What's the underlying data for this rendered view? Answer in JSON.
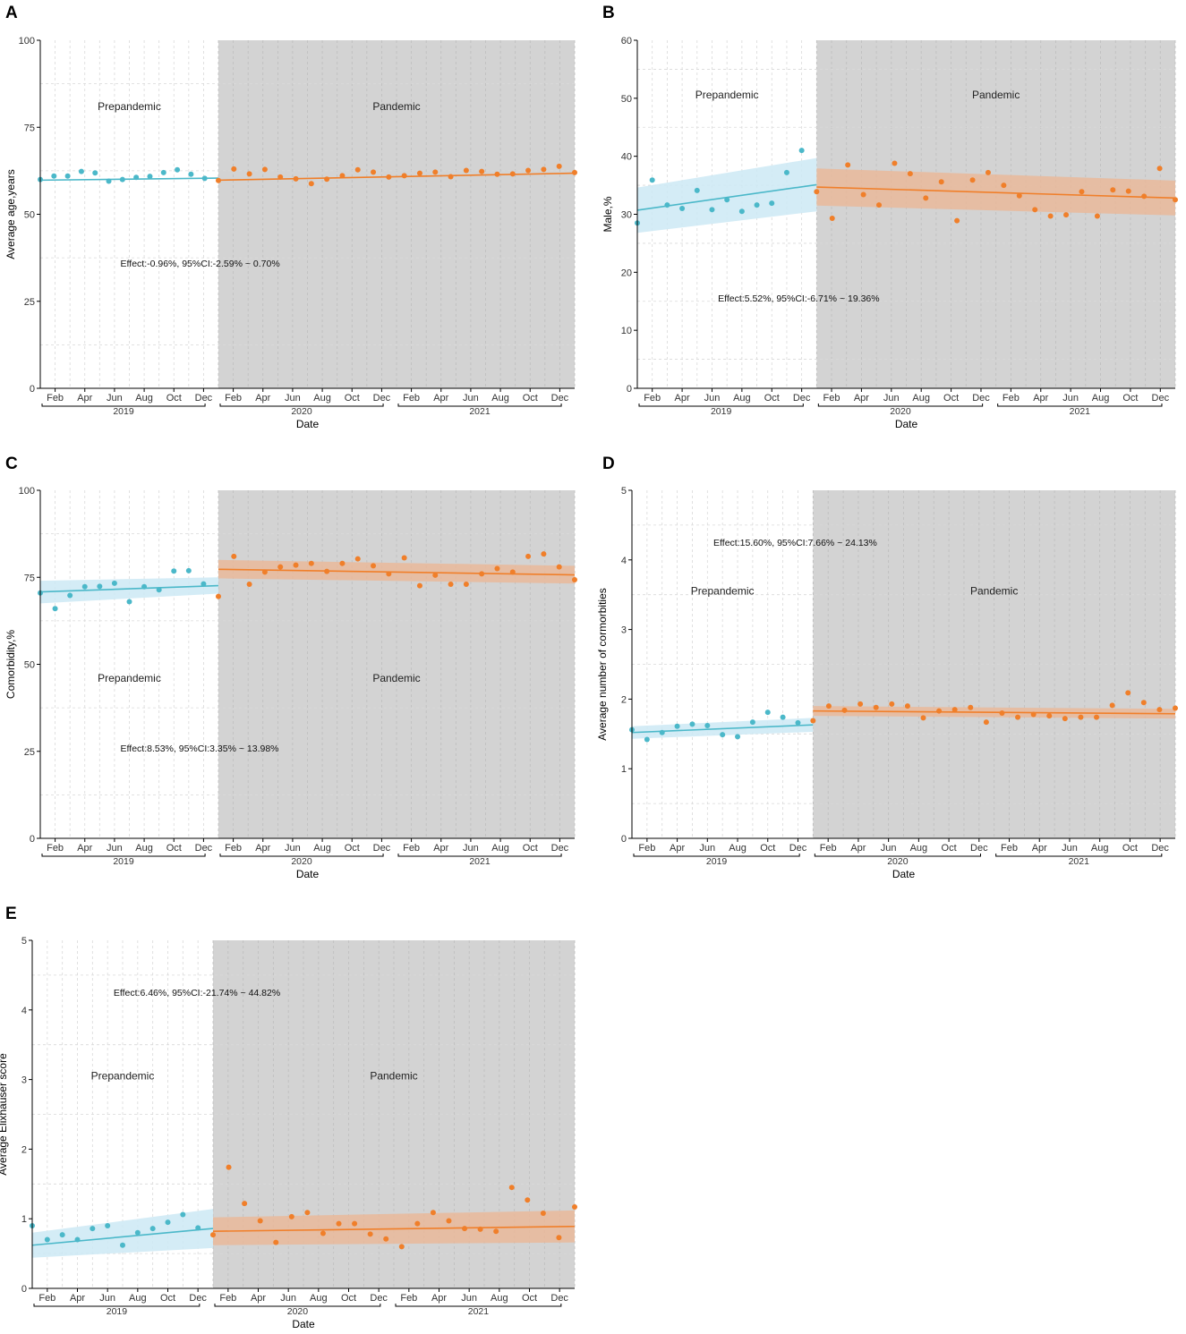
{
  "figure": {
    "months": [
      "Feb",
      "Apr",
      "Jun",
      "Aug",
      "Oct",
      "Dec"
    ],
    "years": [
      "2019",
      "2020",
      "2021"
    ],
    "xlabel": "Date",
    "region_labels": {
      "pre": "Prepandemic",
      "post": "Pandemic"
    },
    "colors": {
      "pre": "#4bb8c9",
      "post": "#f07f2a",
      "pre_band": "#cde9f5",
      "post_band": "#e9b89a",
      "pandemic_bg": "#d3d3d3"
    }
  },
  "chart_data": [
    {
      "panel": "A",
      "type": "scatter",
      "ylabel": "Average age,years",
      "xlabel": "Date",
      "ylim": [
        0,
        100
      ],
      "yticks": [
        0,
        25,
        50,
        75,
        100
      ],
      "pre_values": [
        60.0,
        61.0,
        61.0,
        62.3,
        61.9,
        59.5,
        60.0,
        60.6,
        60.9,
        62.0,
        62.8,
        61.5,
        60.3
      ],
      "post_values": [
        59.7,
        63.0,
        61.6,
        62.9,
        60.7,
        60.2,
        58.8,
        60.1,
        61.1,
        62.8,
        62.1,
        60.7,
        61.1,
        61.8,
        62.1,
        60.8,
        62.6,
        62.3,
        61.5,
        61.6,
        62.6,
        62.9,
        63.8,
        62.0
      ],
      "pre_fit": [
        59.8,
        60.4
      ],
      "post_fit": [
        59.8,
        61.8
      ],
      "pre_ci": null,
      "post_ci": null,
      "effect": "Effect:-0.96%, 95%CI:-2.59% ~ 0.70%",
      "labels": {
        "pre_y": 80,
        "post_y": 80,
        "effect_y": 35
      }
    },
    {
      "panel": "B",
      "type": "scatter",
      "ylabel": "Male,%",
      "xlabel": "Date",
      "ylim": [
        0,
        60
      ],
      "yticks": [
        0,
        10,
        20,
        30,
        40,
        50,
        60
      ],
      "pre_values": [
        28.5,
        35.9,
        31.6,
        31.0,
        34.1,
        30.8,
        32.5,
        30.5,
        31.6,
        31.9,
        37.2,
        41.0
      ],
      "post_values": [
        33.9,
        29.3,
        38.5,
        33.4,
        31.6,
        38.8,
        37.0,
        32.8,
        35.6,
        28.9,
        35.9,
        37.2,
        35.0,
        33.2,
        30.8,
        29.7,
        29.9,
        33.9,
        29.7,
        34.2,
        34.0,
        33.1,
        37.9,
        32.5
      ],
      "pre_fit": [
        30.7,
        35.1
      ],
      "post_fit": [
        34.7,
        32.8
      ],
      "pre_ci": [
        [
          26.8,
          34.6
        ],
        [
          30.5,
          39.7
        ]
      ],
      "post_ci": [
        [
          31.5,
          37.9
        ],
        [
          29.8,
          35.8
        ]
      ],
      "effect": "Effect:5.52%, 95%CI:-6.71% ~ 19.36%",
      "labels": {
        "pre_y": 50,
        "post_y": 50,
        "effect_y": 15
      }
    },
    {
      "panel": "C",
      "type": "scatter",
      "ylabel": "Comorbidity,%",
      "xlabel": "Date",
      "ylim": [
        0,
        100
      ],
      "yticks": [
        0,
        25,
        50,
        75,
        100
      ],
      "pre_values": [
        70.5,
        66.0,
        69.8,
        72.3,
        72.4,
        73.3,
        68.0,
        72.3,
        71.4,
        76.8,
        76.9,
        73.1
      ],
      "post_values": [
        69.5,
        81.0,
        73.0,
        76.5,
        78.0,
        78.5,
        79.0,
        76.7,
        79.0,
        80.3,
        78.3,
        76.0,
        80.6,
        72.6,
        75.6,
        73.0,
        73.0,
        76.0,
        77.5,
        76.5,
        81.0,
        81.7,
        78.0,
        74.3
      ],
      "pre_fit": [
        70.8,
        72.6
      ],
      "post_fit": [
        77.3,
        75.7
      ],
      "pre_ci": [
        [
          67.5,
          74.0
        ],
        [
          70.3,
          75.0
        ]
      ],
      "post_ci": [
        [
          74.7,
          80.0
        ],
        [
          73.2,
          78.3
        ]
      ],
      "effect": "Effect:8.53%, 95%CI:3.35% ~ 13.98%",
      "labels": {
        "pre_y": 45,
        "post_y": 45,
        "effect_y": 25
      }
    },
    {
      "panel": "D",
      "type": "scatter",
      "ylabel": "Average number of cormorbities",
      "xlabel": "Date",
      "ylim": [
        0,
        5
      ],
      "yticks": [
        0,
        1,
        2,
        3,
        4,
        5
      ],
      "pre_values": [
        1.56,
        1.42,
        1.52,
        1.61,
        1.64,
        1.62,
        1.49,
        1.46,
        1.67,
        1.81,
        1.74,
        1.66
      ],
      "post_values": [
        1.69,
        1.9,
        1.84,
        1.93,
        1.88,
        1.93,
        1.9,
        1.73,
        1.83,
        1.85,
        1.88,
        1.67,
        1.8,
        1.74,
        1.78,
        1.76,
        1.72,
        1.74,
        1.74,
        1.91,
        2.09,
        1.95,
        1.85,
        1.87
      ],
      "pre_fit": [
        1.52,
        1.63
      ],
      "post_fit": [
        1.83,
        1.79
      ],
      "pre_ci": [
        [
          1.43,
          1.61
        ],
        [
          1.53,
          1.73
        ]
      ],
      "post_ci": [
        [
          1.76,
          1.9
        ],
        [
          1.72,
          1.86
        ]
      ],
      "effect": "Effect:15.60%, 95%CI:7.66% ~ 24.13%",
      "labels": {
        "pre_y": 3.5,
        "post_y": 3.5,
        "effect_y": 4.2
      }
    },
    {
      "panel": "E",
      "type": "scatter",
      "ylabel": "Average Elixhauser score",
      "xlabel": "Date",
      "ylim": [
        0,
        5
      ],
      "yticks": [
        0,
        1,
        2,
        3,
        4,
        5
      ],
      "pre_values": [
        0.9,
        0.7,
        0.77,
        0.7,
        0.86,
        0.9,
        0.62,
        0.8,
        0.86,
        0.95,
        1.06,
        0.87
      ],
      "post_values": [
        0.77,
        1.74,
        1.22,
        0.97,
        0.66,
        1.03,
        1.09,
        0.79,
        0.93,
        0.93,
        0.78,
        0.71,
        0.6,
        0.93,
        1.09,
        0.97,
        0.86,
        0.85,
        0.82,
        1.45,
        1.27,
        1.08,
        0.73,
        1.17
      ],
      "pre_fit": [
        0.62,
        0.86
      ],
      "post_fit": [
        0.82,
        0.89
      ],
      "pre_ci": [
        [
          0.44,
          0.8
        ],
        [
          0.58,
          1.14
        ]
      ],
      "post_ci": [
        [
          0.62,
          1.02
        ],
        [
          0.66,
          1.12
        ]
      ],
      "effect": "Effect:6.46%, 95%CI:-21.74% ~ 44.82%",
      "labels": {
        "pre_y": 3.0,
        "post_y": 3.0,
        "effect_y": 4.2
      }
    }
  ]
}
